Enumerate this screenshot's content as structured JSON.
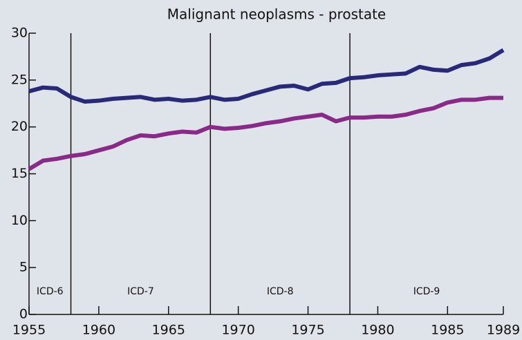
{
  "chart_data": {
    "type": "line",
    "title": "Malignant neoplasms - prostate",
    "x": [
      1955,
      1956,
      1957,
      1958,
      1959,
      1960,
      1961,
      1962,
      1963,
      1964,
      1965,
      1966,
      1967,
      1968,
      1969,
      1970,
      1971,
      1972,
      1973,
      1974,
      1975,
      1976,
      1977,
      1978,
      1979,
      1980,
      1981,
      1982,
      1983,
      1984,
      1985,
      1986,
      1987,
      1988,
      1989
    ],
    "series": [
      {
        "color": "#2a2878",
        "values": [
          23.8,
          24.2,
          24.1,
          23.2,
          22.7,
          22.8,
          23.0,
          23.1,
          23.2,
          22.9,
          23.0,
          22.8,
          22.9,
          23.2,
          22.9,
          23.0,
          23.5,
          23.9,
          24.3,
          24.4,
          24.0,
          24.6,
          24.7,
          25.2,
          25.3,
          25.5,
          25.6,
          25.7,
          26.4,
          26.1,
          26.0,
          26.6,
          26.8,
          27.3,
          28.2
        ]
      },
      {
        "color": "#8a2a88",
        "values": [
          15.5,
          16.4,
          16.6,
          16.9,
          17.1,
          17.5,
          17.9,
          18.6,
          19.1,
          19.0,
          19.3,
          19.5,
          19.4,
          20.0,
          19.8,
          19.9,
          20.1,
          20.4,
          20.6,
          20.9,
          21.1,
          21.3,
          20.6,
          21.0,
          21.0,
          21.1,
          21.1,
          21.3,
          21.7,
          22.0,
          22.6,
          22.9,
          22.9,
          23.1,
          23.1
        ]
      }
    ],
    "xlim": [
      1955,
      1989
    ],
    "xticks": [
      1955,
      1960,
      1965,
      1970,
      1975,
      1980,
      1985,
      1989
    ],
    "ylim": [
      0,
      30
    ],
    "yticks": [
      0,
      5,
      10,
      15,
      20,
      25,
      30
    ],
    "periods": [
      {
        "label": "ICD-6",
        "start": 1955,
        "end": 1958
      },
      {
        "label": "ICD-7",
        "start": 1958,
        "end": 1968
      },
      {
        "label": "ICD-8",
        "start": 1968,
        "end": 1978
      },
      {
        "label": "ICD-9",
        "start": 1978,
        "end": 1989
      }
    ]
  }
}
